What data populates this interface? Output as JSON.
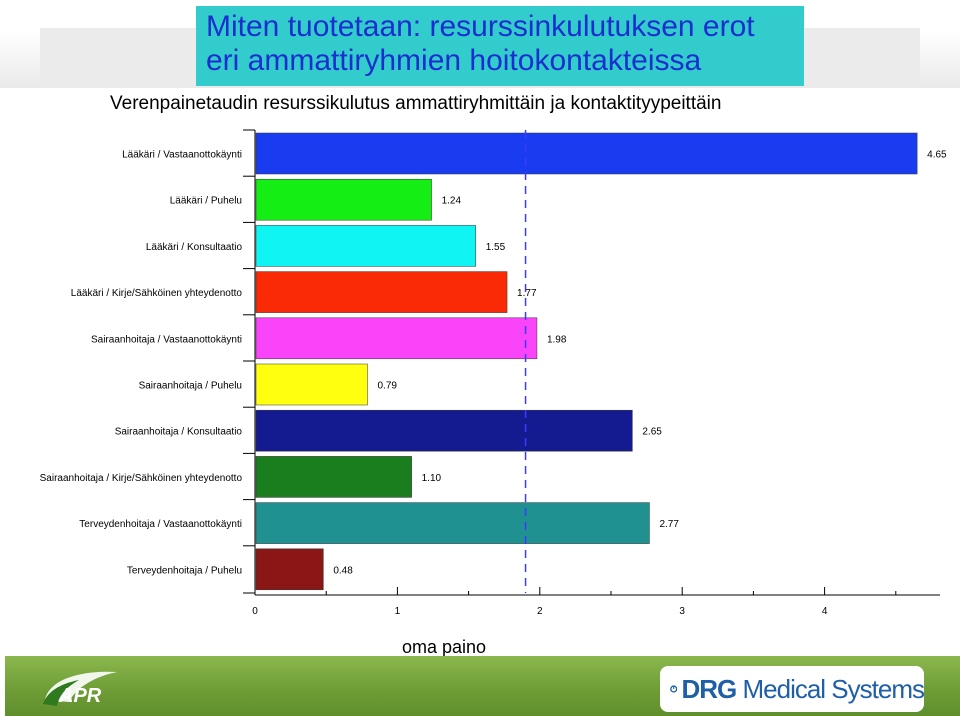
{
  "slide": {
    "title_line1": "Miten tuotetaan: resurssinkulutuksen erot",
    "title_line2": "eri ammattiryhmien hoitokontakteissa"
  },
  "colors": {
    "title_bg": "#33cccc",
    "title_text": "#1b2fd0",
    "footer_green": "#6f9e37",
    "reference_line": "#3b3bff"
  },
  "footer": {
    "left_logo_text": "APR",
    "right_logo_bold": "DRG",
    "right_logo_text": " Medical Systems",
    "right_logo_icon": "drg-ring-icon"
  },
  "chart_data": {
    "type": "bar",
    "orientation": "horizontal",
    "title": "Verenpainetaudin resurssikulutus ammattiryhmittäin ja kontaktityypeittäin",
    "xlabel": "oma paino",
    "ylabel": "",
    "xlim": [
      0,
      4.8
    ],
    "xticks": [
      0,
      1,
      2,
      3,
      4
    ],
    "reference_line": 1.9,
    "grid": false,
    "legend": "none",
    "categories": [
      "Lääkäri / Vastaanottokäynti",
      "Lääkäri / Puhelu",
      "Lääkäri / Konsultaatio",
      "Lääkäri / Kirje/Sähköinen yhteydenotto",
      "Sairaanhoitaja / Vastaanottokäynti",
      "Sairaanhoitaja / Puhelu",
      "Sairaanhoitaja / Konsultaatio",
      "Sairaanhoitaja / Kirje/Sähköinen yhteydenotto",
      "Terveydenhoitaja / Vastaanottokäynti",
      "Terveydenhoitaja / Puhelu"
    ],
    "values": [
      4.65,
      1.24,
      1.55,
      1.77,
      1.98,
      0.79,
      2.65,
      1.1,
      2.77,
      0.48
    ],
    "value_labels": [
      "4.65",
      "1.24",
      "1.55",
      "1.77",
      "1.98",
      "0.79",
      "2.65",
      "1.10",
      "2.77",
      "0.48"
    ],
    "bar_colors": [
      "#1a3cf0",
      "#14ee14",
      "#10f4f4",
      "#fa2a06",
      "#fa44fa",
      "#ffff10",
      "#141a90",
      "#1a7d1e",
      "#209191",
      "#8a1616"
    ]
  }
}
